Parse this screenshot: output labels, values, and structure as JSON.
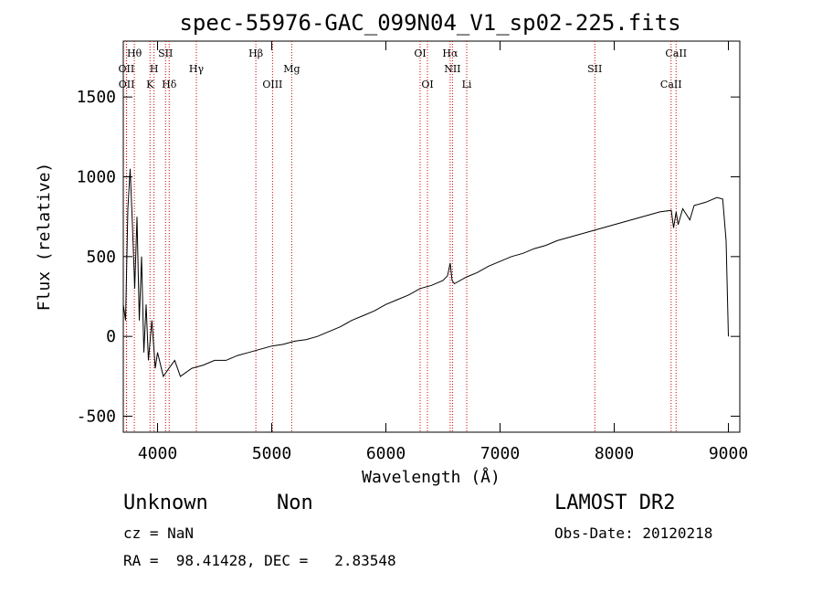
{
  "chart_data": {
    "type": "line",
    "title": "spec-55976-GAC_099N04_V1_sp02-225.fits",
    "xlabel": "Wavelength (Å)",
    "ylabel": "Flux (relative)",
    "xlim": [
      3700,
      9100
    ],
    "ylim": [
      -600,
      1850
    ],
    "x_ticks": [
      4000,
      5000,
      6000,
      7000,
      8000,
      9000
    ],
    "y_ticks": [
      -500,
      0,
      500,
      1000,
      1500
    ],
    "grid": false,
    "line_color": "#000000",
    "marker_color": "#cc0000",
    "series": [
      {
        "x": [
          3700,
          3720,
          3740,
          3760,
          3780,
          3800,
          3820,
          3840,
          3860,
          3880,
          3900,
          3920,
          3950,
          3980,
          4000,
          4050,
          4100,
          4150,
          4200,
          4300,
          4400,
          4500,
          4600,
          4700,
          4800,
          4900,
          5000,
          5100,
          5200,
          5300,
          5400,
          5500,
          5600,
          5700,
          5800,
          5900,
          6000,
          6100,
          6200,
          6300,
          6400,
          6500,
          6540,
          6563,
          6580,
          6600,
          6700,
          6800,
          6900,
          7000,
          7100,
          7200,
          7300,
          7400,
          7500,
          7600,
          7700,
          7800,
          7900,
          8000,
          8100,
          8200,
          8300,
          8400,
          8500,
          8520,
          8542,
          8560,
          8600,
          8662,
          8700,
          8800,
          8900,
          8950,
          8980,
          9000
        ],
        "y": [
          200,
          100,
          800,
          1050,
          700,
          300,
          750,
          100,
          500,
          -100,
          200,
          -150,
          100,
          -200,
          -100,
          -250,
          -200,
          -150,
          -250,
          -200,
          -180,
          -150,
          -150,
          -120,
          -100,
          -80,
          -60,
          -50,
          -30,
          -20,
          0,
          30,
          60,
          100,
          130,
          160,
          200,
          230,
          260,
          300,
          320,
          350,
          380,
          460,
          350,
          330,
          370,
          400,
          440,
          470,
          500,
          520,
          550,
          570,
          600,
          620,
          640,
          660,
          680,
          700,
          720,
          740,
          760,
          780,
          790,
          680,
          780,
          700,
          800,
          730,
          820,
          840,
          870,
          860,
          600,
          0
        ]
      }
    ],
    "line_markers": [
      {
        "label": "Hθ",
        "x": 3797,
        "row": 1
      },
      {
        "label": "OII",
        "x": 3727,
        "row": 2
      },
      {
        "label": "H",
        "x": 3969,
        "row": 2
      },
      {
        "label": "SII",
        "x": 4070,
        "row": 1
      },
      {
        "label": "OII",
        "x": 3729,
        "row": 3
      },
      {
        "label": "K",
        "x": 3934,
        "row": 3
      },
      {
        "label": "Hδ",
        "x": 4102,
        "row": 3
      },
      {
        "label": "Hγ",
        "x": 4340,
        "row": 2
      },
      {
        "label": "Hβ",
        "x": 4861,
        "row": 1
      },
      {
        "label": "OIII",
        "x": 5007,
        "row": 3
      },
      {
        "label": "Mg",
        "x": 5175,
        "row": 2
      },
      {
        "label": "OI",
        "x": 6300,
        "row": 1
      },
      {
        "label": "OI",
        "x": 6364,
        "row": 3
      },
      {
        "label": "Hα",
        "x": 6563,
        "row": 1
      },
      {
        "label": "NII",
        "x": 6583,
        "row": 2
      },
      {
        "label": "Li",
        "x": 6708,
        "row": 3
      },
      {
        "label": "SII",
        "x": 7830,
        "row": 2
      },
      {
        "label": "CaII",
        "x": 8542,
        "row": 1
      },
      {
        "label": "CaII",
        "x": 8498,
        "row": 3
      }
    ]
  },
  "info": {
    "object_class": "Unknown",
    "subclass": "Non",
    "survey": "LAMOST DR2",
    "redshift": "cz = NaN",
    "obs_date": "Obs-Date: 20120218",
    "coords": "RA =  98.41428, DEC =   2.83548"
  }
}
